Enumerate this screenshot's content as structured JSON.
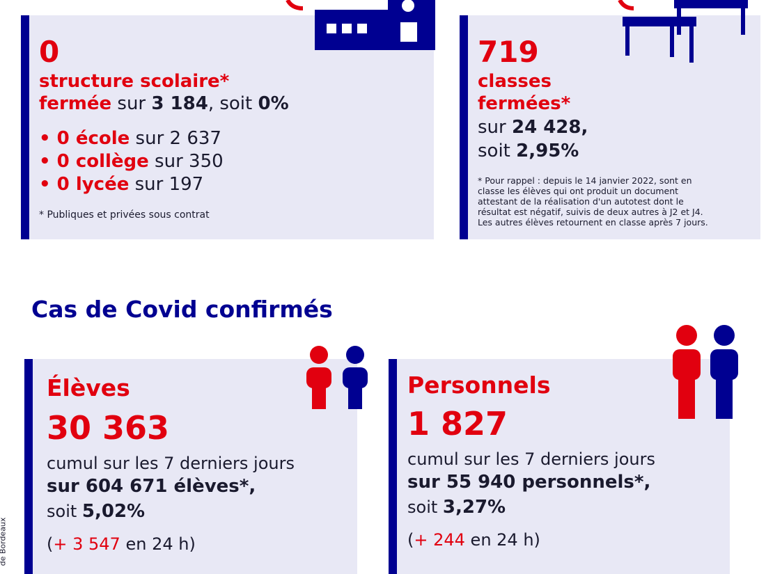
{
  "structures": {
    "count": "0",
    "label_line1": "structure scolaire*",
    "label_fermee": "fermée",
    "label_sur": " sur ",
    "total": "3 184",
    "label_soit": ", soit ",
    "percent": "0%",
    "items": [
      {
        "value": "0 école",
        "rest": " sur 2 637"
      },
      {
        "value": "0 collège",
        "rest": " sur 350"
      },
      {
        "value": "0 lycée",
        "rest": " sur 197"
      }
    ],
    "footnote": "* Publiques et privées sous contrat"
  },
  "classes": {
    "count": "719",
    "label_line1": "classes",
    "label_line2": "fermées*",
    "sur_prefix": "sur ",
    "total": "24 428,",
    "soit_prefix": "soit ",
    "percent": "2,95%",
    "footnote_lines": [
      "*  Pour rappel : depuis le 14 janvier 2022, sont en",
      "classe les élèves qui ont produit un document",
      "attestant de la réalisation d'un autotest dont le",
      "résultat est négatif, suivis de deux autres à J2 et J4.",
      "Les autres élèves retournent en classe après 7 jours."
    ]
  },
  "section_title": "Cas de Covid confirmés",
  "eleves": {
    "title": "Élèves",
    "count": "30 363",
    "cumul": "cumul sur les 7 derniers jours",
    "sur_total": "sur 604 671 élèves",
    "star": "*,",
    "soit_prefix": "soit ",
    "percent": "5,02%",
    "delta_open": "(",
    "delta_value": "+ 3 547",
    "delta_rest": " en 24 h)"
  },
  "personnels": {
    "title": "Personnels",
    "count": "1 827",
    "cumul": "cumul sur les 7 derniers jours",
    "sur_total": "sur 55 940 personnels",
    "star": "*,",
    "soit_prefix": "soit ",
    "percent": "3,27%",
    "delta_open": "(",
    "delta_value": "+ 244",
    "delta_rest": " en 24 h)"
  },
  "side_credit": "de Bordeaux",
  "colors": {
    "red": "#e1000f",
    "navy": "#000091",
    "card_bg": "#e8e8f5"
  }
}
